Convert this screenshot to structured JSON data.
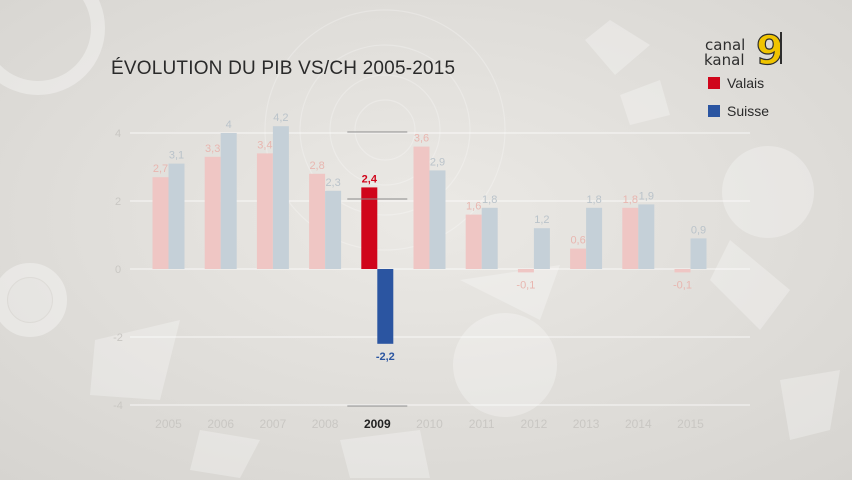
{
  "logo": {
    "line1": "canal",
    "line2": "kanal",
    "number": "9"
  },
  "colors": {
    "valais": "#d0051b",
    "suisse": "#2b55a1",
    "valais_faded": "#efc6c4",
    "suisse_faded": "#c5d0d8"
  },
  "chart_data": {
    "type": "bar",
    "title": "ÉVOLUTION DU PIB VS/CH 2005-2015",
    "categories": [
      "2005",
      "2006",
      "2007",
      "2008",
      "2009",
      "2010",
      "2011",
      "2012",
      "2013",
      "2014",
      "2015"
    ],
    "series": [
      {
        "name": "Valais",
        "values": [
          2.7,
          3.3,
          3.4,
          2.8,
          2.4,
          3.6,
          1.6,
          -0.1,
          0.6,
          1.8,
          -0.1
        ]
      },
      {
        "name": "Suisse",
        "values": [
          3.1,
          4,
          4.2,
          2.3,
          -2.2,
          2.9,
          1.8,
          1.2,
          1.8,
          1.9,
          0.9
        ]
      }
    ],
    "value_labels": {
      "Valais": [
        "2,7",
        "3,3",
        "3,4",
        "2,8",
        "2,4",
        "3,6",
        "1,6",
        "-0,1",
        "0,6",
        "1,8",
        "-0,1"
      ],
      "Suisse": [
        "3,1",
        "4",
        "4,2",
        "2,3",
        "-2,2",
        "2,9",
        "1,8",
        "1,2",
        "1,8",
        "1,9",
        "0,9"
      ]
    },
    "highlight_category": "2009",
    "yticks": [
      "4",
      "2",
      "0",
      "-2",
      "-4"
    ],
    "ylim": [
      -4,
      4
    ],
    "grid": true,
    "legend_position": "top-right",
    "xlabel": "",
    "ylabel": ""
  }
}
